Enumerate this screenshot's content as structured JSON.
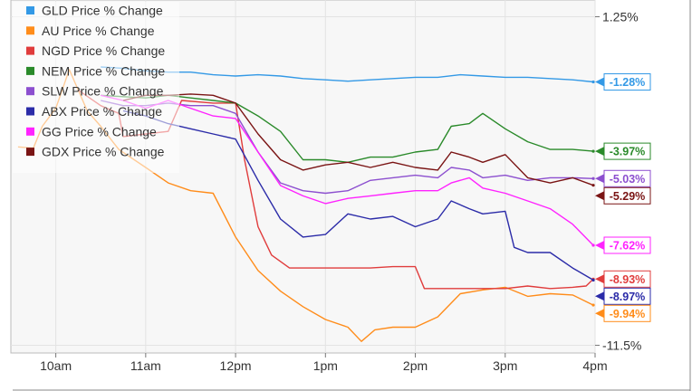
{
  "chart_data": {
    "type": "line",
    "title": "",
    "xlabel": "",
    "ylabel": "",
    "x_ticks": [
      "10am",
      "11am",
      "12pm",
      "1pm",
      "2pm",
      "3pm",
      "4pm"
    ],
    "xlim": [
      9.5,
      16.0
    ],
    "y_ticks": [
      "1.25%",
      "-11.5%"
    ],
    "y_tick_values": [
      1.25,
      -11.5
    ],
    "ylim": [
      -11.8,
      1.9
    ],
    "grid": true,
    "legend_position": "top-left",
    "series": [
      {
        "name": "GLD Price % Change",
        "color": "#3399e6",
        "end_label": "-1.28%",
        "end_value": -1.28,
        "points": [
          [
            10.5,
            -0.7
          ],
          [
            10.75,
            -0.75
          ],
          [
            11,
            -0.85
          ],
          [
            11.25,
            -0.9
          ],
          [
            11.5,
            -0.9
          ],
          [
            11.75,
            -1.0
          ],
          [
            12,
            -1.05
          ],
          [
            12.25,
            -1.0
          ],
          [
            12.5,
            -1.05
          ],
          [
            12.75,
            -1.15
          ],
          [
            13,
            -1.2
          ],
          [
            13.25,
            -1.25
          ],
          [
            13.5,
            -1.2
          ],
          [
            13.75,
            -1.15
          ],
          [
            14,
            -1.1
          ],
          [
            14.25,
            -1.1
          ],
          [
            14.5,
            -1.0
          ],
          [
            14.75,
            -1.05
          ],
          [
            15,
            -1.1
          ],
          [
            15.25,
            -1.1
          ],
          [
            15.5,
            -1.15
          ],
          [
            15.75,
            -1.2
          ],
          [
            15.98,
            -1.28
          ]
        ]
      },
      {
        "name": "AU Price % Change",
        "color": "#ff8c1a",
        "end_label": "-9.94%",
        "end_value": -9.94,
        "points": [
          [
            9.58,
            -3.8
          ],
          [
            9.75,
            -3.85
          ],
          [
            9.85,
            -3.0
          ],
          [
            10.0,
            -2.3
          ],
          [
            10.08,
            -1.5
          ],
          [
            10.15,
            -0.8
          ],
          [
            10.25,
            -1.6
          ],
          [
            10.35,
            -2.4
          ],
          [
            10.5,
            -3.0
          ],
          [
            10.7,
            -3.9
          ],
          [
            11.0,
            -4.6
          ],
          [
            11.25,
            -5.2
          ],
          [
            11.5,
            -5.5
          ],
          [
            11.75,
            -5.6
          ],
          [
            12.0,
            -7.3
          ],
          [
            12.25,
            -8.6
          ],
          [
            12.5,
            -9.4
          ],
          [
            12.75,
            -10.0
          ],
          [
            13.0,
            -10.5
          ],
          [
            13.25,
            -10.8
          ],
          [
            13.4,
            -11.35
          ],
          [
            13.55,
            -10.9
          ],
          [
            13.75,
            -10.8
          ],
          [
            14.0,
            -10.8
          ],
          [
            14.25,
            -10.4
          ],
          [
            14.5,
            -9.5
          ],
          [
            14.75,
            -9.35
          ],
          [
            15.0,
            -9.25
          ],
          [
            15.25,
            -9.6
          ],
          [
            15.5,
            -9.5
          ],
          [
            15.75,
            -9.55
          ],
          [
            15.98,
            -9.94
          ]
        ]
      },
      {
        "name": "NGD Price % Change",
        "color": "#e03c3c",
        "end_label": "-8.93%",
        "end_value": -8.93,
        "points": [
          [
            10.25,
            -1.6
          ],
          [
            10.5,
            -2.2
          ],
          [
            10.7,
            -2.5
          ],
          [
            10.75,
            -3.4
          ],
          [
            11.0,
            -3.3
          ],
          [
            11.25,
            -3.2
          ],
          [
            11.4,
            -2.0
          ],
          [
            11.75,
            -2.1
          ],
          [
            12.0,
            -2.1
          ],
          [
            12.1,
            -4.3
          ],
          [
            12.25,
            -6.9
          ],
          [
            12.4,
            -8.0
          ],
          [
            12.6,
            -8.5
          ],
          [
            12.75,
            -8.5
          ],
          [
            13.0,
            -8.5
          ],
          [
            13.25,
            -8.5
          ],
          [
            13.5,
            -8.5
          ],
          [
            13.75,
            -8.45
          ],
          [
            14.0,
            -8.45
          ],
          [
            14.1,
            -9.3
          ],
          [
            14.25,
            -9.3
          ],
          [
            14.5,
            -9.3
          ],
          [
            14.75,
            -9.3
          ],
          [
            15.0,
            -9.3
          ],
          [
            15.25,
            -9.2
          ],
          [
            15.5,
            -9.3
          ],
          [
            15.75,
            -9.25
          ],
          [
            15.9,
            -9.2
          ],
          [
            15.98,
            -8.93
          ]
        ]
      },
      {
        "name": "NEM Price % Change",
        "color": "#2a8a2a",
        "end_label": "-3.97%",
        "end_value": -3.97,
        "points": [
          [
            10.5,
            -1.8
          ],
          [
            10.75,
            -1.85
          ],
          [
            11.0,
            -1.9
          ],
          [
            11.25,
            -1.8
          ],
          [
            11.5,
            -1.9
          ],
          [
            11.75,
            -2.0
          ],
          [
            12.0,
            -2.1
          ],
          [
            12.25,
            -2.6
          ],
          [
            12.5,
            -3.2
          ],
          [
            12.75,
            -4.3
          ],
          [
            13.0,
            -4.3
          ],
          [
            13.25,
            -4.4
          ],
          [
            13.5,
            -4.2
          ],
          [
            13.75,
            -4.2
          ],
          [
            14.0,
            -4.0
          ],
          [
            14.25,
            -3.9
          ],
          [
            14.4,
            -3.0
          ],
          [
            14.6,
            -2.9
          ],
          [
            14.75,
            -2.5
          ],
          [
            15.0,
            -3.1
          ],
          [
            15.25,
            -3.6
          ],
          [
            15.5,
            -3.9
          ],
          [
            15.75,
            -3.9
          ],
          [
            15.98,
            -3.97
          ]
        ]
      },
      {
        "name": "SLW Price % Change",
        "color": "#8c4fcf",
        "end_label": "-5.03%",
        "end_value": -5.03,
        "points": [
          [
            10.5,
            -2.0
          ],
          [
            10.75,
            -2.2
          ],
          [
            11.0,
            -2.2
          ],
          [
            11.25,
            -2.1
          ],
          [
            11.5,
            -2.2
          ],
          [
            11.75,
            -2.2
          ],
          [
            12.0,
            -2.5
          ],
          [
            12.25,
            -4.0
          ],
          [
            12.5,
            -5.2
          ],
          [
            12.75,
            -5.5
          ],
          [
            13.0,
            -5.6
          ],
          [
            13.25,
            -5.5
          ],
          [
            13.5,
            -5.1
          ],
          [
            13.75,
            -5.0
          ],
          [
            14.0,
            -4.9
          ],
          [
            14.25,
            -5.0
          ],
          [
            14.4,
            -4.6
          ],
          [
            14.6,
            -4.7
          ],
          [
            14.75,
            -5.0
          ],
          [
            15.0,
            -4.9
          ],
          [
            15.25,
            -5.1
          ],
          [
            15.5,
            -5.0
          ],
          [
            15.75,
            -5.0
          ],
          [
            15.98,
            -5.03
          ]
        ]
      },
      {
        "name": "ABX Price % Change",
        "color": "#2b2ba8",
        "end_label": "-8.97%",
        "end_value": -8.97,
        "points": [
          [
            10.75,
            -2.4
          ],
          [
            11.0,
            -2.6
          ],
          [
            11.25,
            -2.9
          ],
          [
            11.5,
            -3.1
          ],
          [
            11.75,
            -3.3
          ],
          [
            12.0,
            -3.5
          ],
          [
            12.25,
            -5.1
          ],
          [
            12.5,
            -6.6
          ],
          [
            12.75,
            -7.3
          ],
          [
            13.0,
            -7.2
          ],
          [
            13.25,
            -6.4
          ],
          [
            13.5,
            -6.6
          ],
          [
            13.75,
            -6.5
          ],
          [
            14.0,
            -6.9
          ],
          [
            14.25,
            -6.6
          ],
          [
            14.4,
            -5.9
          ],
          [
            14.6,
            -6.2
          ],
          [
            14.75,
            -6.4
          ],
          [
            15.0,
            -6.3
          ],
          [
            15.1,
            -7.7
          ],
          [
            15.25,
            -7.9
          ],
          [
            15.5,
            -7.9
          ],
          [
            15.75,
            -8.5
          ],
          [
            15.98,
            -8.97
          ]
        ]
      },
      {
        "name": "GG Price % Change",
        "color": "#ff22ff",
        "end_label": "-7.62%",
        "end_value": -7.62,
        "points": [
          [
            10.5,
            -1.8
          ],
          [
            10.75,
            -2.0
          ],
          [
            11.0,
            -2.3
          ],
          [
            11.25,
            -2.0
          ],
          [
            11.5,
            -2.3
          ],
          [
            11.75,
            -2.6
          ],
          [
            12.0,
            -2.7
          ],
          [
            12.25,
            -4.0
          ],
          [
            12.5,
            -5.3
          ],
          [
            12.75,
            -5.7
          ],
          [
            13.0,
            -6.0
          ],
          [
            13.25,
            -5.8
          ],
          [
            13.5,
            -5.7
          ],
          [
            13.75,
            -5.6
          ],
          [
            14.0,
            -5.5
          ],
          [
            14.25,
            -5.5
          ],
          [
            14.4,
            -5.2
          ],
          [
            14.6,
            -5.0
          ],
          [
            14.75,
            -5.4
          ],
          [
            15.0,
            -5.6
          ],
          [
            15.25,
            -5.9
          ],
          [
            15.5,
            -6.2
          ],
          [
            15.75,
            -6.8
          ],
          [
            15.98,
            -7.62
          ]
        ]
      },
      {
        "name": "GDX Price % Change",
        "color": "#7a1414",
        "end_label": "-5.29%",
        "end_value": -5.29,
        "points": [
          [
            10.75,
            -2.0
          ],
          [
            11.0,
            -1.8
          ],
          [
            11.25,
            -1.8
          ],
          [
            11.5,
            -1.75
          ],
          [
            11.75,
            -1.8
          ],
          [
            12.0,
            -2.1
          ],
          [
            12.25,
            -3.3
          ],
          [
            12.5,
            -4.3
          ],
          [
            12.75,
            -4.7
          ],
          [
            13.0,
            -4.5
          ],
          [
            13.25,
            -4.4
          ],
          [
            13.5,
            -4.6
          ],
          [
            13.75,
            -4.4
          ],
          [
            14.0,
            -4.6
          ],
          [
            14.25,
            -4.7
          ],
          [
            14.4,
            -4.0
          ],
          [
            14.6,
            -4.2
          ],
          [
            14.75,
            -4.4
          ],
          [
            15.0,
            -4.1
          ],
          [
            15.25,
            -5.0
          ],
          [
            15.5,
            -5.2
          ],
          [
            15.75,
            -5.0
          ],
          [
            15.98,
            -5.29
          ]
        ]
      }
    ]
  }
}
